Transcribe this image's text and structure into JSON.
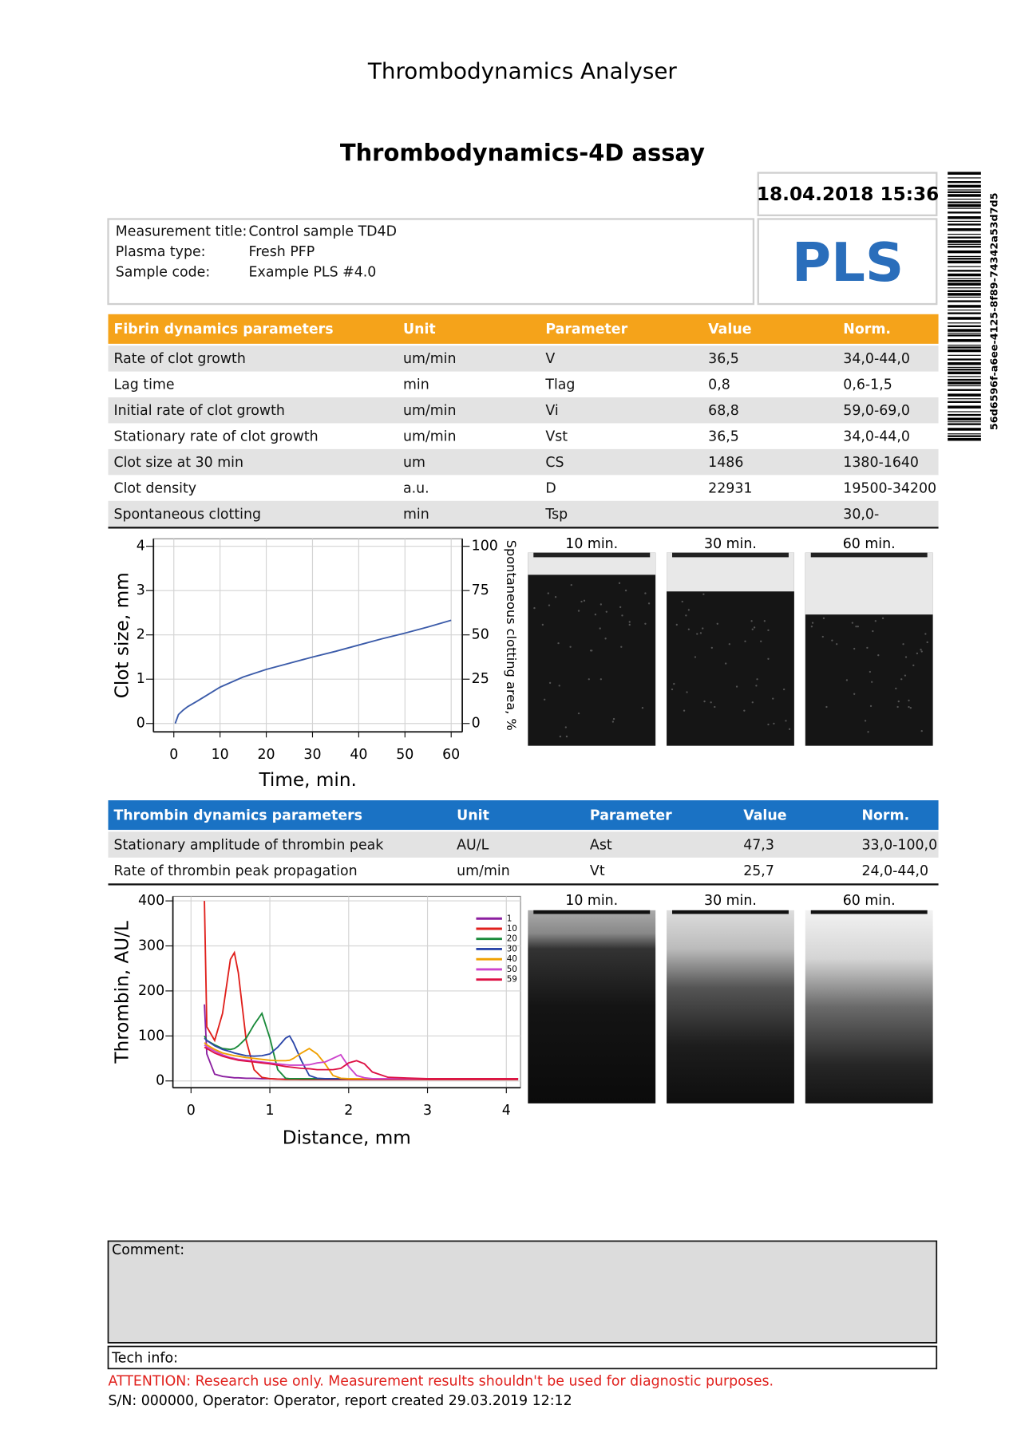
{
  "header": {
    "app_title": "Thrombodynamics Analyser",
    "assay_title": "Thrombodynamics-4D assay",
    "datetime": "18.04.2018 15:36",
    "badge": "PLS",
    "barcode_text": "56d6596f-a6ee-4125-8f89-74342a53d7d5"
  },
  "sample": {
    "rows": [
      [
        "Measurement title:",
        "Control sample TD4D"
      ],
      [
        "Plasma type:",
        "Fresh PFP"
      ],
      [
        "Sample code:",
        "Example PLS #4.0"
      ]
    ]
  },
  "fibrin_table": {
    "columns": [
      "Fibrin dynamics parameters",
      "Unit",
      "Parameter",
      "Value",
      "Norm."
    ],
    "rows": [
      [
        "Rate of clot growth",
        "um/min",
        "V",
        "36,5",
        "34,0-44,0"
      ],
      [
        "Lag time",
        "min",
        "Tlag",
        "0,8",
        "0,6-1,5"
      ],
      [
        "Initial rate of clot growth",
        "um/min",
        "Vi",
        "68,8",
        "59,0-69,0"
      ],
      [
        "Stationary rate of clot growth",
        "um/min",
        "Vst",
        "36,5",
        "34,0-44,0"
      ],
      [
        "Clot size at 30 min",
        "um",
        "CS",
        "1486",
        "1380-1640"
      ],
      [
        "Clot density",
        "a.u.",
        "D",
        "22931",
        "19500-34200"
      ],
      [
        "Spontaneous clotting",
        "min",
        "Tsp",
        null,
        "30,0-"
      ]
    ]
  },
  "fibrin_images": {
    "labels": [
      "10 min.",
      "30 min.",
      "60 min."
    ]
  },
  "thrombin_table": {
    "columns": [
      "Thrombin dynamics parameters",
      "Unit",
      "Parameter",
      "Value",
      "Norm."
    ],
    "rows": [
      [
        "Stationary amplitude of thrombin peak",
        "AU/L",
        "Ast",
        "47,3",
        "33,0-100,0"
      ],
      [
        "Rate of thrombin peak propagation",
        "um/min",
        "Vt",
        "25,7",
        "24,0-44,0"
      ]
    ]
  },
  "thrombin_images": {
    "labels": [
      "10 min.",
      "30 min.",
      "60 min."
    ]
  },
  "chart_data": [
    {
      "type": "line",
      "x_label": "Time, min.",
      "y_label": "Clot size, mm",
      "y2_label": "Spontaneous clotting area, %",
      "x": [
        0.3,
        1,
        2,
        3,
        5,
        10,
        15,
        20,
        25,
        30,
        35,
        40,
        45,
        50,
        55,
        60
      ],
      "series": [
        {
          "color": "#3b5ba9",
          "values": [
            0,
            0.2,
            0.3,
            0.38,
            0.5,
            0.82,
            1.05,
            1.22,
            1.36,
            1.5,
            1.63,
            1.77,
            1.91,
            2.04,
            2.18,
            2.33
          ]
        }
      ],
      "xlim": [
        -4.4,
        62.4
      ],
      "ylim": [
        -0.19,
        4.17
      ],
      "y2lim": [
        -4.75,
        104.25
      ],
      "xticks": [
        0,
        10,
        20,
        30,
        40,
        50,
        60
      ],
      "yticks": [
        0,
        1,
        2,
        3,
        4
      ],
      "y2ticks": [
        0,
        25,
        50,
        75,
        100
      ],
      "grid": true
    },
    {
      "type": "line",
      "x_label": "Distance, mm",
      "y_label": "Thrombin, AU/L",
      "legend": "top-right",
      "x": [
        0.17,
        0.2,
        0.3,
        0.4,
        0.5,
        0.55,
        0.6,
        0.7,
        0.8,
        0.9,
        1.0,
        1.1,
        1.2,
        1.25,
        1.3,
        1.4,
        1.5,
        1.6,
        1.7,
        1.8,
        1.9,
        2.0,
        2.1,
        2.2,
        2.3,
        2.5,
        3.0,
        3.5,
        4.15
      ],
      "series": [
        {
          "name": "1",
          "color": "#8b1fa0",
          "values": [
            170,
            60,
            15,
            10,
            8,
            7,
            7,
            6,
            6,
            5,
            5,
            4,
            4,
            4,
            4,
            3,
            3,
            3,
            3,
            3,
            3,
            3,
            3,
            3,
            3,
            3,
            3,
            3,
            3
          ]
        },
        {
          "name": "10",
          "color": "#e0201c",
          "values": [
            400,
            120,
            90,
            150,
            270,
            285,
            240,
            90,
            25,
            8,
            5,
            4,
            3,
            3,
            3,
            3,
            3,
            3,
            3,
            3,
            3,
            3,
            3,
            3,
            3,
            3,
            3,
            3,
            3
          ]
        },
        {
          "name": "20",
          "color": "#1a8a3a",
          "values": [
            100,
            90,
            80,
            72,
            70,
            72,
            78,
            95,
            125,
            150,
            95,
            25,
            6,
            5,
            5,
            5,
            5,
            5,
            5,
            5,
            5,
            5,
            5,
            5,
            5,
            5,
            5,
            5,
            5
          ]
        },
        {
          "name": "30",
          "color": "#2a45a8",
          "values": [
            95,
            90,
            78,
            70,
            65,
            62,
            60,
            56,
            55,
            56,
            60,
            75,
            95,
            100,
            85,
            45,
            12,
            6,
            5,
            5,
            5,
            5,
            5,
            5,
            5,
            5,
            5,
            5,
            5
          ]
        },
        {
          "name": "40",
          "color": "#f0a000",
          "values": [
            85,
            80,
            70,
            62,
            58,
            56,
            55,
            52,
            50,
            48,
            46,
            45,
            45,
            46,
            50,
            62,
            72,
            60,
            38,
            12,
            6,
            5,
            5,
            5,
            5,
            5,
            5,
            5,
            5
          ]
        },
        {
          "name": "50",
          "color": "#cc44cc",
          "values": [
            80,
            76,
            66,
            58,
            52,
            50,
            48,
            46,
            44,
            42,
            40,
            38,
            36,
            35,
            35,
            35,
            36,
            40,
            42,
            50,
            58,
            32,
            12,
            7,
            5,
            5,
            5,
            5,
            5
          ]
        },
        {
          "name": "59",
          "color": "#dd1144",
          "values": [
            75,
            72,
            62,
            55,
            50,
            48,
            46,
            44,
            42,
            40,
            38,
            35,
            32,
            31,
            30,
            28,
            27,
            25,
            25,
            25,
            28,
            40,
            45,
            38,
            20,
            8,
            5,
            5,
            5
          ]
        }
      ],
      "xlim": [
        -0.23,
        4.18
      ],
      "ylim": [
        -15,
        410
      ],
      "xticks": [
        0,
        1,
        2,
        3,
        4
      ],
      "yticks": [
        0,
        100,
        200,
        300,
        400
      ],
      "grid": true
    }
  ],
  "comment_label": "Comment:",
  "tech_label": "Tech info:",
  "attention": "ATTENTION: Research use only. Measurement results shouldn't be used for diagnostic purposes.",
  "footer": "S/N: 000000, Operator: Operator, report created 29.03.2019 12:12"
}
